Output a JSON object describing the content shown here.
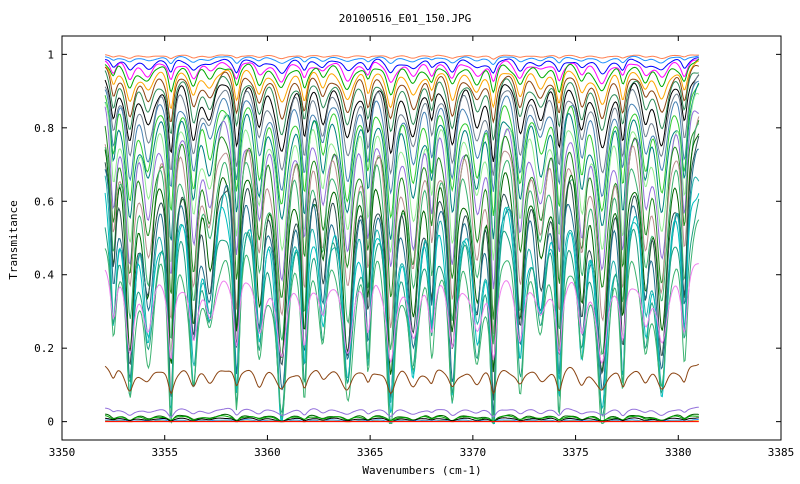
{
  "chart_data": {
    "type": "line",
    "title": "20100516_E01_150.JPG",
    "xlabel": "Wavenumbers (cm-1)",
    "ylabel": "Transmitance",
    "xlim": [
      3350,
      3385
    ],
    "ylim": [
      -0.05,
      1.05
    ],
    "x_range_data": [
      3352.1,
      3381.0
    ],
    "xticks": [
      3350,
      3355,
      3360,
      3365,
      3370,
      3375,
      3380,
      3385
    ],
    "xtick_labels": [
      "3350",
      "3355",
      "3360",
      "3365",
      "3370",
      "3375",
      "3380",
      "3385"
    ],
    "yticks": [
      0,
      0.2,
      0.4,
      0.6,
      0.8,
      1.0
    ],
    "ytick_labels": [
      "0",
      "0.2",
      "0.4",
      "0.6",
      "0.8",
      "1"
    ],
    "grid": false,
    "legend": "none",
    "absorption_lines_cm-1": [
      3352.5,
      3353.3,
      3354.2,
      3355.3,
      3356.4,
      3357.2,
      3358.5,
      3359.6,
      3360.7,
      3361.8,
      3362.7,
      3363.9,
      3364.9,
      3366.0,
      3367.1,
      3368.0,
      3369.0,
      3370.2,
      3371.0,
      3372.3,
      3373.3,
      3374.2,
      3375.3,
      3376.3,
      3377.3,
      3378.4,
      3379.2,
      3380.3
    ],
    "series": [
      {
        "color": "#ff7f50",
        "baseline": 1.0,
        "depth": 0.01
      },
      {
        "color": "#1e90ff",
        "baseline": 0.998,
        "depth": 0.02
      },
      {
        "color": "#0000ff",
        "baseline": 0.995,
        "depth": 0.04
      },
      {
        "color": "#ff00ff",
        "baseline": 0.993,
        "depth": 0.06
      },
      {
        "color": "#00aa00",
        "baseline": 0.99,
        "depth": 0.08
      },
      {
        "color": "#ffa500",
        "baseline": 0.985,
        "depth": 0.11
      },
      {
        "color": "#8b4513",
        "baseline": 0.98,
        "depth": 0.14
      },
      {
        "color": "#2e8b57",
        "baseline": 0.975,
        "depth": 0.17
      },
      {
        "color": "#000000",
        "baseline": 0.97,
        "depth": 0.21
      },
      {
        "color": "#708090",
        "baseline": 0.965,
        "depth": 0.25
      },
      {
        "color": "#4682b4",
        "baseline": 0.955,
        "depth": 0.29
      },
      {
        "color": "#32cd32",
        "baseline": 0.945,
        "depth": 0.33
      },
      {
        "color": "#008080",
        "baseline": 0.935,
        "depth": 0.37
      },
      {
        "color": "#90ee90",
        "baseline": 0.92,
        "depth": 0.41
      },
      {
        "color": "#9370db",
        "baseline": 0.905,
        "depth": 0.45
      },
      {
        "color": "#228b22",
        "baseline": 0.89,
        "depth": 0.49
      },
      {
        "color": "#bc8f8f",
        "baseline": 0.875,
        "depth": 0.53
      },
      {
        "color": "#3cb371",
        "baseline": 0.855,
        "depth": 0.57
      },
      {
        "color": "#006400",
        "baseline": 0.835,
        "depth": 0.61
      },
      {
        "color": "#2f4f4f",
        "baseline": 0.81,
        "depth": 0.63
      },
      {
        "color": "#1f6f8b",
        "baseline": 0.78,
        "depth": 0.64
      },
      {
        "color": "#20b2aa",
        "baseline": 0.74,
        "depth": 0.64
      },
      {
        "color": "#00bfbf",
        "baseline": 0.72,
        "depth": 0.63
      },
      {
        "color": "#20a080",
        "baseline": 0.66,
        "depth": 0.58
      },
      {
        "color": "#3cb371",
        "baseline": 0.58,
        "depth": 0.52
      },
      {
        "color": "#ee82ee",
        "baseline": 0.45,
        "depth": 0.25
      },
      {
        "color": "#8b4513",
        "baseline": 0.16,
        "depth": 0.07
      },
      {
        "color": "#9370db",
        "baseline": 0.04,
        "depth": 0.022
      },
      {
        "color": "#006400",
        "baseline": 0.022,
        "depth": 0.018
      },
      {
        "color": "#00aa00",
        "baseline": 0.018,
        "depth": 0.014
      },
      {
        "color": "#000000",
        "baseline": 0.012,
        "depth": 0.01
      },
      {
        "color": "#1e90ff",
        "baseline": 0.006,
        "depth": 0.006
      },
      {
        "color": "#ffa500",
        "baseline": 0.002,
        "depth": 0.002
      },
      {
        "color": "#ff0000",
        "baseline": 0.0,
        "depth": 0.0
      }
    ]
  }
}
